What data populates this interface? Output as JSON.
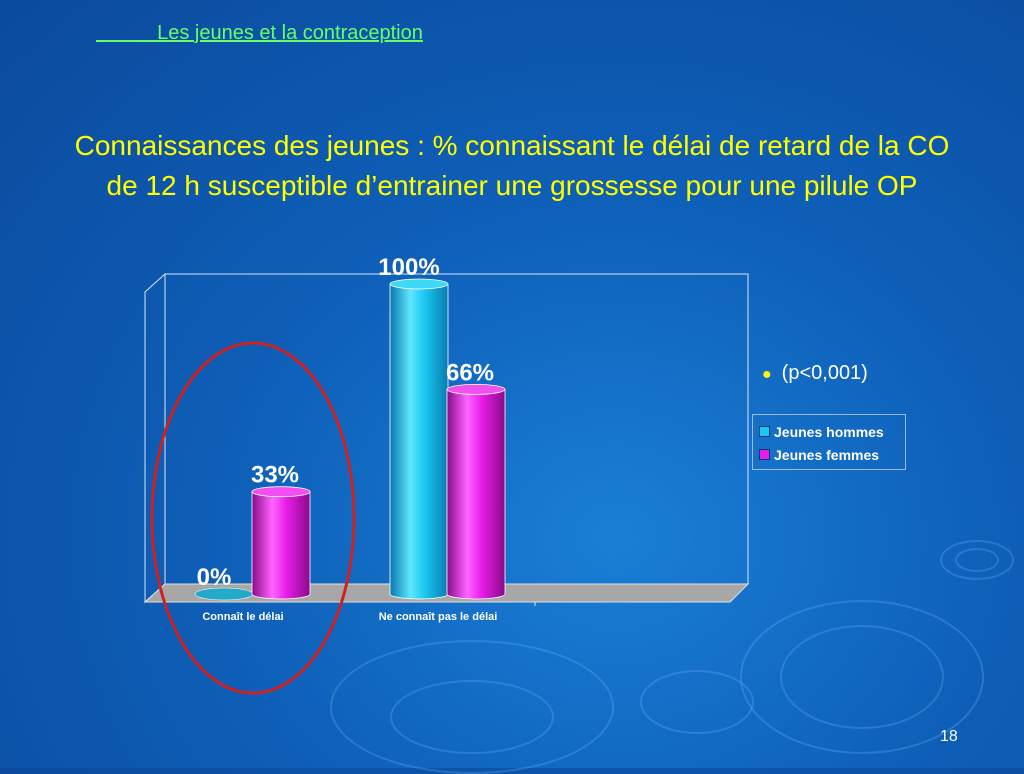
{
  "header": {
    "link_text": "           Les jeunes et la contraception"
  },
  "title": {
    "line1": "Connaissances des jeunes : % connaissant le délai de retard de la CO",
    "line2": "de 12 h susceptible d’entrainer une grossesse pour une pilule OP"
  },
  "note": {
    "text": "(p<0,001)"
  },
  "page_number": "18",
  "colors": {
    "hommes": "#19c8f0",
    "femmes": "#e81ce8",
    "title": "#ffff00",
    "header_link": "#66ff66",
    "highlight_ellipse": "#cc2222"
  },
  "chart_data": {
    "type": "bar",
    "categories": [
      "Connaît le délai",
      "Ne connaît pas le délai"
    ],
    "series": [
      {
        "name": "Jeunes hommes",
        "values": [
          0,
          100
        ],
        "labels": [
          "0%",
          "100%"
        ]
      },
      {
        "name": "Jeunes femmes",
        "values": [
          33,
          66
        ],
        "labels": [
          "33%",
          "66%"
        ]
      }
    ],
    "ylim": [
      0,
      100
    ],
    "legend_position": "right",
    "grid": false,
    "highlighted_category": "Connaît le délai"
  }
}
